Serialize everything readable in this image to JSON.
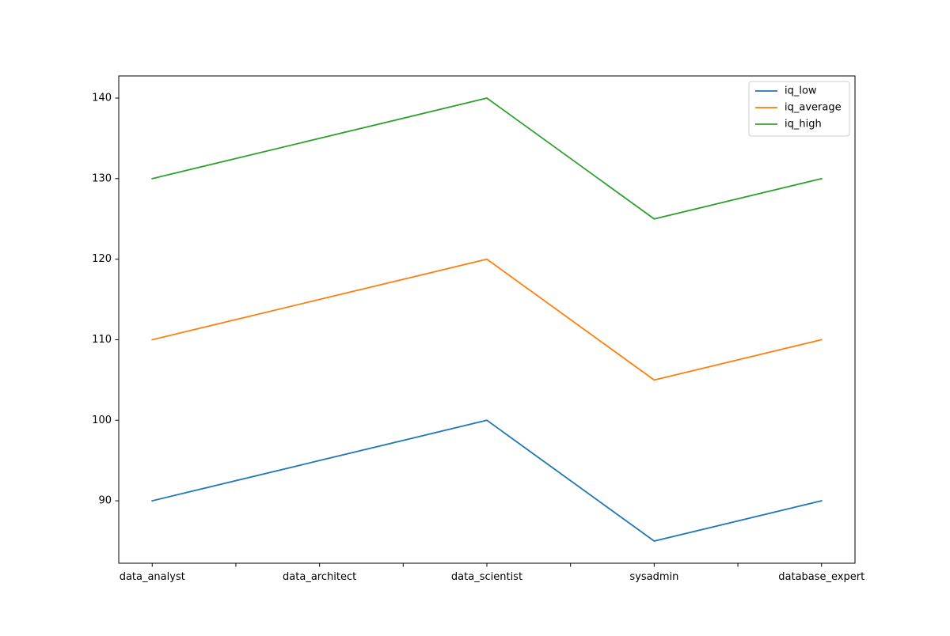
{
  "chart_data": {
    "type": "line",
    "title": "",
    "xlabel": "",
    "ylabel": "",
    "categories": [
      "data_analyst",
      "data_architect",
      "data_scientist",
      "sysadmin",
      "database_expert"
    ],
    "x_tick_labels": [
      "data_analyst",
      "",
      "data_architect",
      "",
      "data_scientist",
      "",
      "sysadmin",
      "",
      "database_expert"
    ],
    "yticks": [
      90,
      100,
      110,
      120,
      130,
      140
    ],
    "ylim": [
      82.25,
      142.75
    ],
    "grid": false,
    "legend_position": "top-right",
    "series": [
      {
        "name": "iq_low",
        "color": "#1f77b4",
        "values": [
          90,
          95,
          100,
          85,
          90
        ]
      },
      {
        "name": "iq_average",
        "color": "#ff7f0e",
        "values": [
          110,
          115,
          120,
          105,
          110
        ]
      },
      {
        "name": "iq_high",
        "color": "#2ca02c",
        "values": [
          130,
          135,
          140,
          125,
          130
        ]
      }
    ]
  }
}
